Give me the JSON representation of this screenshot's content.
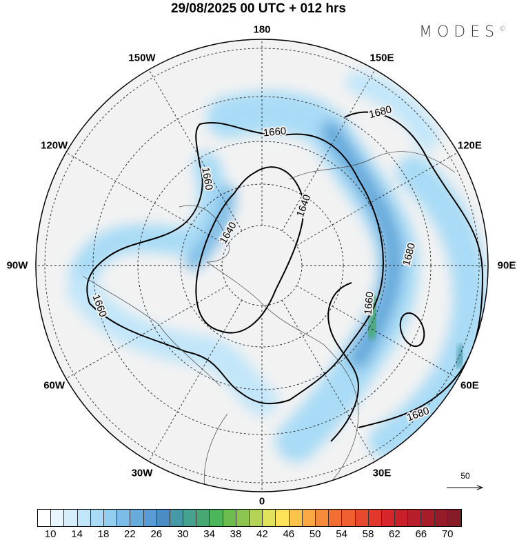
{
  "title": "29/08/2025  00 UTC  + 012 hrs",
  "logo": "MODES",
  "logo_mark": "©",
  "longitude_labels": [
    {
      "lon": 180,
      "text": "180"
    },
    {
      "lon": 150,
      "text": "150E"
    },
    {
      "lon": 120,
      "text": "120E"
    },
    {
      "lon": 90,
      "text": "90E"
    },
    {
      "lon": 60,
      "text": "60E"
    },
    {
      "lon": 30,
      "text": "30E"
    },
    {
      "lon": 0,
      "text": "0"
    },
    {
      "lon": -30,
      "text": "30W"
    },
    {
      "lon": -60,
      "text": "60W"
    },
    {
      "lon": -90,
      "text": "90W"
    },
    {
      "lon": -120,
      "text": "120W"
    },
    {
      "lon": -150,
      "text": "150W"
    }
  ],
  "contour_labels": [
    "1680",
    "1660",
    "1660",
    "1640",
    "1640",
    "1660",
    "1680",
    "1660",
    "1680"
  ],
  "vector_scale": "50",
  "colorbar": {
    "labels": [
      "10",
      "14",
      "18",
      "22",
      "26",
      "30",
      "34",
      "38",
      "42",
      "46",
      "50",
      "54",
      "58",
      "62",
      "66",
      "70"
    ],
    "colors": [
      "#ffffff",
      "#eaf6fd",
      "#d6eefb",
      "#c2e6f9",
      "#a9dbf6",
      "#93cdef",
      "#7dbce6",
      "#67aadc",
      "#5a9bd6",
      "#4a8dc4",
      "#4799a8",
      "#46a18e",
      "#47a873",
      "#4db55a",
      "#6bbd50",
      "#8cc54f",
      "#b3d456",
      "#dfe25a",
      "#fde25a",
      "#fbc34a",
      "#f9a843",
      "#f58a3b",
      "#f26f32",
      "#ef5f2f",
      "#e7492e",
      "#e1372d",
      "#d5262c",
      "#c6212b",
      "#b61e2a",
      "#a61c29",
      "#951b28",
      "#861a26"
    ]
  }
}
